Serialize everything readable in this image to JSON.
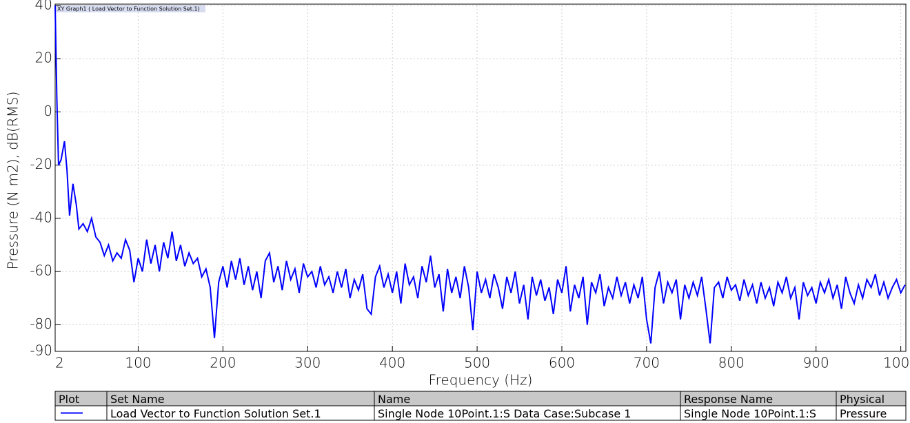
{
  "chart_data": {
    "type": "line",
    "title": "XY Graph1 ( Load Vector to Function Solution Set.1)",
    "x_label": "Frequency (Hz)",
    "y_label": "Pressure (N m2), dB(RMS)",
    "xlim": [
      2,
      1006
    ],
    "ylim": [
      -90,
      40
    ],
    "xticks": [
      2,
      100,
      200,
      300,
      400,
      500,
      600,
      700,
      800,
      900,
      1000
    ],
    "yticks": [
      40,
      20,
      0,
      -20,
      -40,
      -60,
      -80,
      -90
    ],
    "grid": true,
    "x": [
      2,
      4,
      6,
      9,
      13,
      16,
      19,
      23,
      27,
      30,
      35,
      40,
      45,
      50,
      55,
      60,
      65,
      70,
      75,
      80,
      85,
      90,
      95,
      100,
      105,
      110,
      115,
      120,
      125,
      130,
      135,
      140,
      145,
      150,
      155,
      160,
      165,
      170,
      175,
      180,
      185,
      190,
      195,
      200,
      205,
      210,
      215,
      220,
      225,
      230,
      235,
      240,
      245,
      250,
      255,
      260,
      265,
      270,
      275,
      280,
      285,
      290,
      295,
      300,
      305,
      310,
      315,
      320,
      325,
      330,
      335,
      340,
      345,
      350,
      355,
      360,
      365,
      370,
      375,
      380,
      385,
      390,
      395,
      400,
      405,
      410,
      415,
      420,
      425,
      430,
      435,
      440,
      445,
      450,
      455,
      460,
      465,
      470,
      475,
      480,
      485,
      490,
      495,
      500,
      505,
      510,
      515,
      520,
      525,
      530,
      535,
      540,
      545,
      550,
      555,
      560,
      565,
      570,
      575,
      580,
      585,
      590,
      595,
      600,
      605,
      610,
      615,
      620,
      625,
      630,
      635,
      640,
      645,
      650,
      655,
      660,
      665,
      670,
      675,
      680,
      685,
      690,
      695,
      700,
      705,
      710,
      715,
      720,
      725,
      730,
      735,
      740,
      745,
      750,
      755,
      760,
      765,
      770,
      775,
      780,
      785,
      790,
      795,
      800,
      805,
      810,
      815,
      820,
      825,
      830,
      835,
      840,
      845,
      850,
      855,
      860,
      865,
      870,
      875,
      880,
      885,
      890,
      895,
      900,
      905,
      910,
      915,
      920,
      925,
      930,
      935,
      940,
      945,
      950,
      955,
      960,
      965,
      970,
      975,
      980,
      985,
      990,
      995,
      1000,
      1005
    ],
    "series": [
      {
        "color": "#0000ff",
        "values": [
          40,
          5,
          -20,
          -18,
          -11,
          -22,
          -39,
          -27,
          -35,
          -44,
          -42,
          -45,
          -40,
          -47,
          -49,
          -54,
          -50,
          -56,
          -53,
          -55,
          -48,
          -52,
          -64,
          -55,
          -60,
          -48,
          -57,
          -50,
          -60,
          -49,
          -55,
          -45,
          -56,
          -50,
          -58,
          -53,
          -57,
          -55,
          -62,
          -59,
          -66,
          -85,
          -64,
          -58,
          -66,
          -56,
          -63,
          -55,
          -65,
          -58,
          -67,
          -60,
          -70,
          -56,
          -53,
          -64,
          -58,
          -67,
          -56,
          -63,
          -59,
          -68,
          -57,
          -62,
          -60,
          -66,
          -58,
          -65,
          -62,
          -68,
          -60,
          -66,
          -59,
          -70,
          -63,
          -67,
          -61,
          -74,
          -76,
          -62,
          -58,
          -66,
          -61,
          -68,
          -60,
          -72,
          -57,
          -65,
          -62,
          -70,
          -58,
          -64,
          -54,
          -66,
          -61,
          -75,
          -59,
          -68,
          -62,
          -70,
          -58,
          -66,
          -82,
          -60,
          -68,
          -63,
          -70,
          -61,
          -66,
          -74,
          -62,
          -68,
          -60,
          -72,
          -65,
          -78,
          -62,
          -69,
          -63,
          -71,
          -66,
          -76,
          -63,
          -68,
          -58,
          -75,
          -65,
          -70,
          -62,
          -80,
          -64,
          -68,
          -61,
          -73,
          -66,
          -70,
          -62,
          -69,
          -64,
          -72,
          -65,
          -70,
          -62,
          -78,
          -87,
          -66,
          -60,
          -72,
          -64,
          -68,
          -63,
          -78,
          -65,
          -70,
          -64,
          -69,
          -62,
          -74,
          -87,
          -66,
          -64,
          -70,
          -62,
          -67,
          -65,
          -71,
          -63,
          -69,
          -65,
          -72,
          -64,
          -70,
          -66,
          -73,
          -64,
          -68,
          -62,
          -70,
          -66,
          -78,
          -64,
          -69,
          -66,
          -72,
          -64,
          -68,
          -63,
          -70,
          -65,
          -74,
          -62,
          -68,
          -72,
          -65,
          -70,
          -63,
          -66,
          -61,
          -69,
          -64,
          -70,
          -66,
          -63,
          -68,
          -65
        ]
      }
    ]
  },
  "legend_table": {
    "headers": [
      "Plot",
      "Set Name",
      "Name",
      "Response Name",
      "Physical"
    ],
    "rows": [
      [
        "",
        "Load Vector to Function Solution Set.1",
        "Single Node 10Point.1:S   Data Case:Subcase 1",
        "Single Node 10Point.1:S",
        "Pressure"
      ]
    ]
  }
}
